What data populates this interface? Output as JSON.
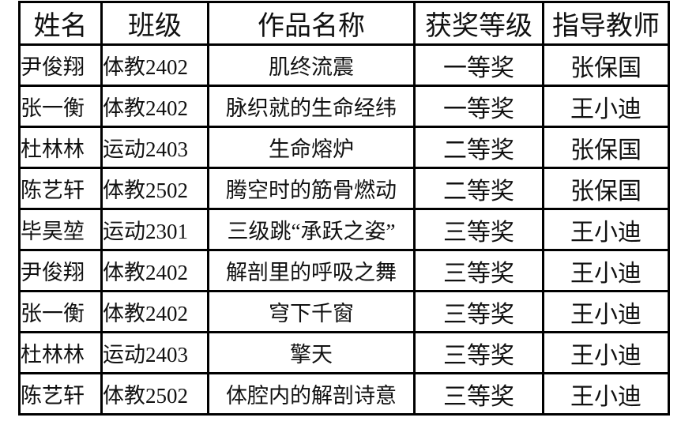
{
  "table": {
    "headers": [
      "姓名",
      "班级",
      "作品名称",
      "获奖等级",
      "指导教师"
    ],
    "rows": [
      [
        "尹俊翔",
        "体教2402",
        "肌终流震",
        "一等奖",
        "张保国"
      ],
      [
        "张一衡",
        "体教2402",
        "脉织就的生命经纬",
        "一等奖",
        "王小迪"
      ],
      [
        "杜林林",
        "运动2403",
        "生命熔炉",
        "二等奖",
        "张保国"
      ],
      [
        "陈艺轩",
        "体教2502",
        "腾空时的筋骨燃动",
        "二等奖",
        "张保国"
      ],
      [
        "毕昊堃",
        "运动2301",
        "三级跳“承跃之姿”",
        "三等奖",
        "王小迪"
      ],
      [
        "尹俊翔",
        "体教2402",
        "解剖里的呼吸之舞",
        "三等奖",
        "王小迪"
      ],
      [
        "张一衡",
        "体教2402",
        "穹下千窗",
        "三等奖",
        "王小迪"
      ],
      [
        "杜林林",
        "运动2403",
        "擎天",
        "三等奖",
        "王小迪"
      ],
      [
        "陈艺轩",
        "体教2502",
        "体腔内的解剖诗意",
        "三等奖",
        "王小迪"
      ]
    ]
  }
}
